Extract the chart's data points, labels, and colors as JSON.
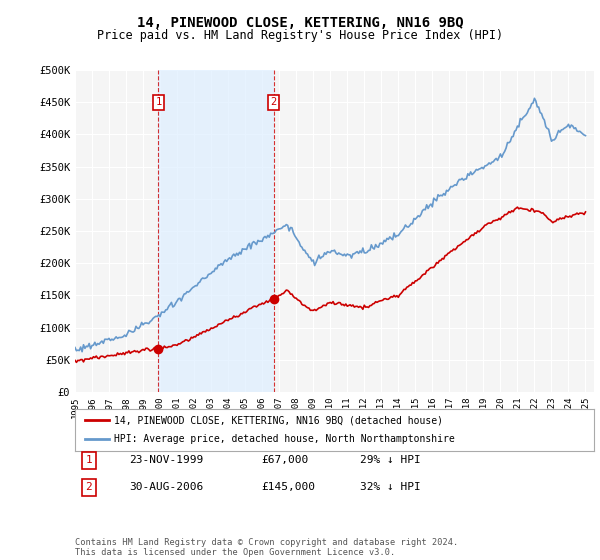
{
  "title": "14, PINEWOOD CLOSE, KETTERING, NN16 9BQ",
  "subtitle": "Price paid vs. HM Land Registry's House Price Index (HPI)",
  "ylabel_ticks": [
    "£0",
    "£50K",
    "£100K",
    "£150K",
    "£200K",
    "£250K",
    "£300K",
    "£350K",
    "£400K",
    "£450K",
    "£500K"
  ],
  "ytick_values": [
    0,
    50000,
    100000,
    150000,
    200000,
    250000,
    300000,
    350000,
    400000,
    450000,
    500000
  ],
  "ylim": [
    0,
    500000
  ],
  "sale1_date": 1999.9,
  "sale1_price": 67000,
  "sale1_label": "1",
  "sale2_date": 2006.67,
  "sale2_price": 145000,
  "sale2_label": "2",
  "sale1_info": "23-NOV-1999",
  "sale1_amount": "£67,000",
  "sale1_hpi": "29% ↓ HPI",
  "sale2_info": "30-AUG-2006",
  "sale2_amount": "£145,000",
  "sale2_hpi": "32% ↓ HPI",
  "legend_red": "14, PINEWOOD CLOSE, KETTERING, NN16 9BQ (detached house)",
  "legend_blue": "HPI: Average price, detached house, North Northamptonshire",
  "footer": "Contains HM Land Registry data © Crown copyright and database right 2024.\nThis data is licensed under the Open Government Licence v3.0.",
  "red_color": "#cc0000",
  "blue_color": "#6699cc",
  "vline_color": "#cc0000",
  "shade_color": "#ddeeff",
  "background_color": "#ffffff",
  "plot_bg_color": "#f5f5f5",
  "grid_color": "#ffffff"
}
